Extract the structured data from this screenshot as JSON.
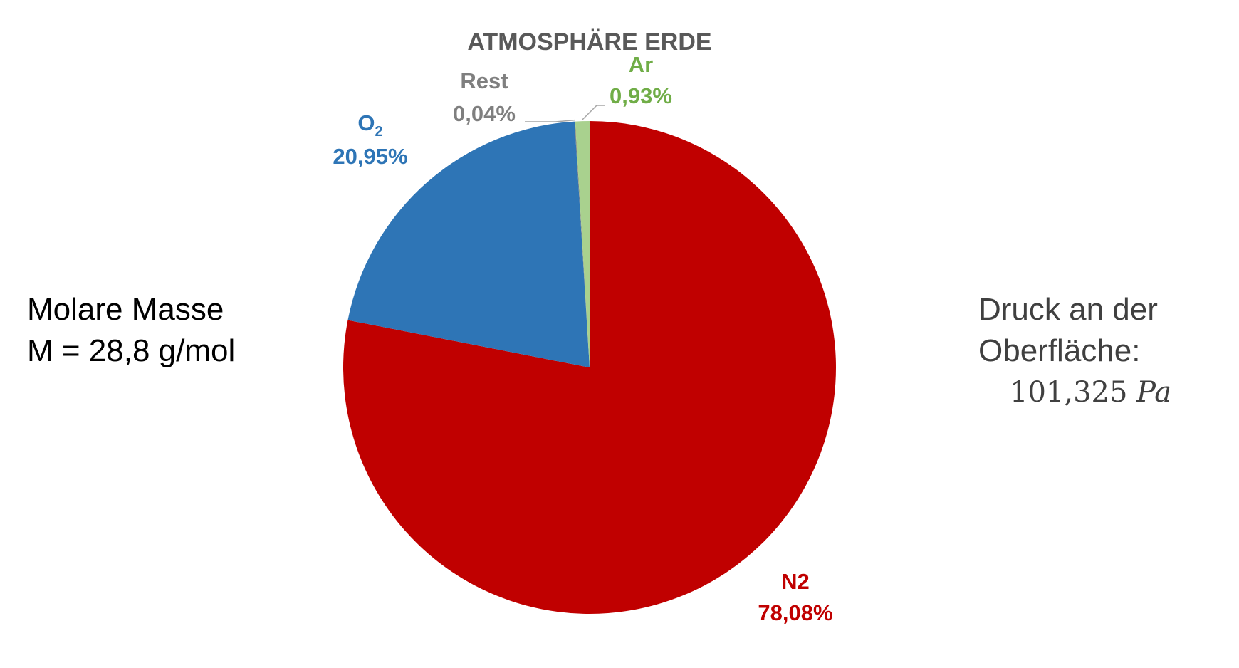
{
  "chart_data": {
    "type": "pie",
    "title": "ATMOSPHÄRE ERDE",
    "slices": [
      {
        "name": "N2",
        "value": 78.08,
        "value_label": "78,08%",
        "color": "#C00000"
      },
      {
        "name": "O2",
        "value": 20.95,
        "value_label": "20,95%",
        "color": "#2E75B6"
      },
      {
        "name": "Rest",
        "value": 0.04,
        "value_label": "0,04%",
        "color": "#7F7F7F"
      },
      {
        "name": "Ar",
        "value": 0.93,
        "value_label": "0,93%",
        "color": "#A9D18E"
      }
    ],
    "label_colors": {
      "N2": "#C00000",
      "O2": "#2E75B6",
      "Rest": "#7F7F7F",
      "Ar": "#70AD47"
    },
    "start_angle_deg": 0,
    "direction": "clockwise",
    "legend": "none"
  },
  "notes": {
    "left_line1": "Molare Masse",
    "left_line2": "M = 28,8 g/mol",
    "right_line1": "Druck an der",
    "right_line2": "Oberfläche:",
    "right_pressure_value": "101,325",
    "right_pressure_unit": "Pa"
  }
}
